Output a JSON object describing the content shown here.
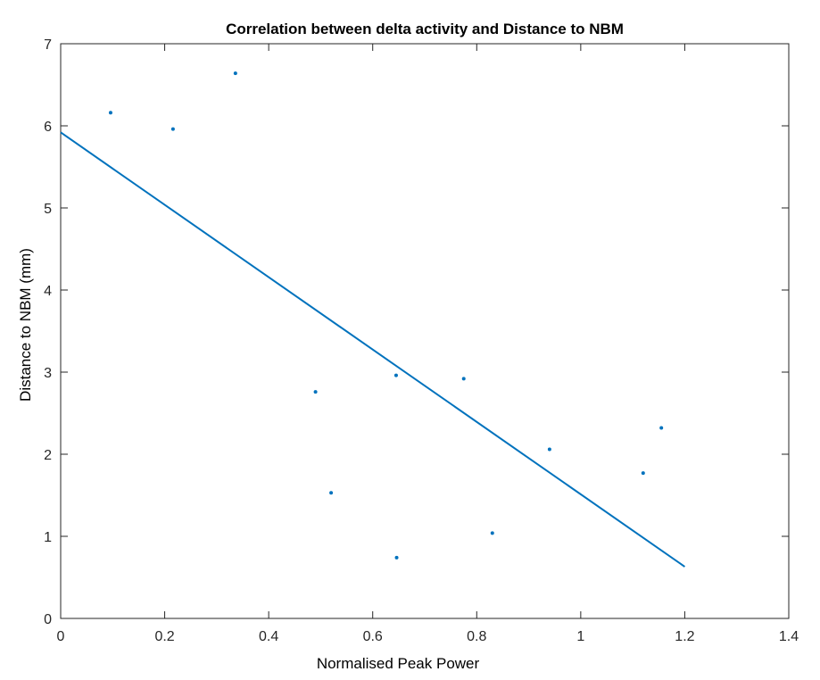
{
  "chart_data": {
    "type": "scatter",
    "title": "Correlation between delta activity and Distance to NBM",
    "xlabel": "Normalised Peak Power",
    "ylabel": "Distance to NBM (mm)",
    "xlim": [
      0,
      1.4
    ],
    "ylim": [
      0,
      7
    ],
    "x_ticks": [
      0,
      0.2,
      0.4,
      0.6,
      0.8,
      1,
      1.2,
      1.4
    ],
    "x_tick_labels": [
      "0",
      "0.2",
      "0.4",
      "0.6",
      "0.8",
      "1",
      "1.2",
      "1.4"
    ],
    "y_ticks": [
      0,
      1,
      2,
      3,
      4,
      5,
      6,
      7
    ],
    "y_tick_labels": [
      "0",
      "1",
      "2",
      "3",
      "4",
      "5",
      "6",
      "7"
    ],
    "grid": false,
    "series": [
      {
        "kind": "points",
        "color": "#0072BD",
        "x": [
          0.096,
          0.216,
          0.336,
          0.49,
          0.52,
          0.645,
          0.646,
          0.775,
          0.83,
          0.94,
          1.12,
          1.155
        ],
        "y": [
          6.16,
          5.96,
          6.64,
          2.76,
          1.53,
          2.96,
          0.74,
          2.92,
          1.04,
          2.06,
          1.77,
          2.32
        ]
      },
      {
        "kind": "fit-line",
        "color": "#0072BD",
        "x": [
          0,
          1.2
        ],
        "y": [
          5.92,
          0.63
        ]
      }
    ]
  }
}
